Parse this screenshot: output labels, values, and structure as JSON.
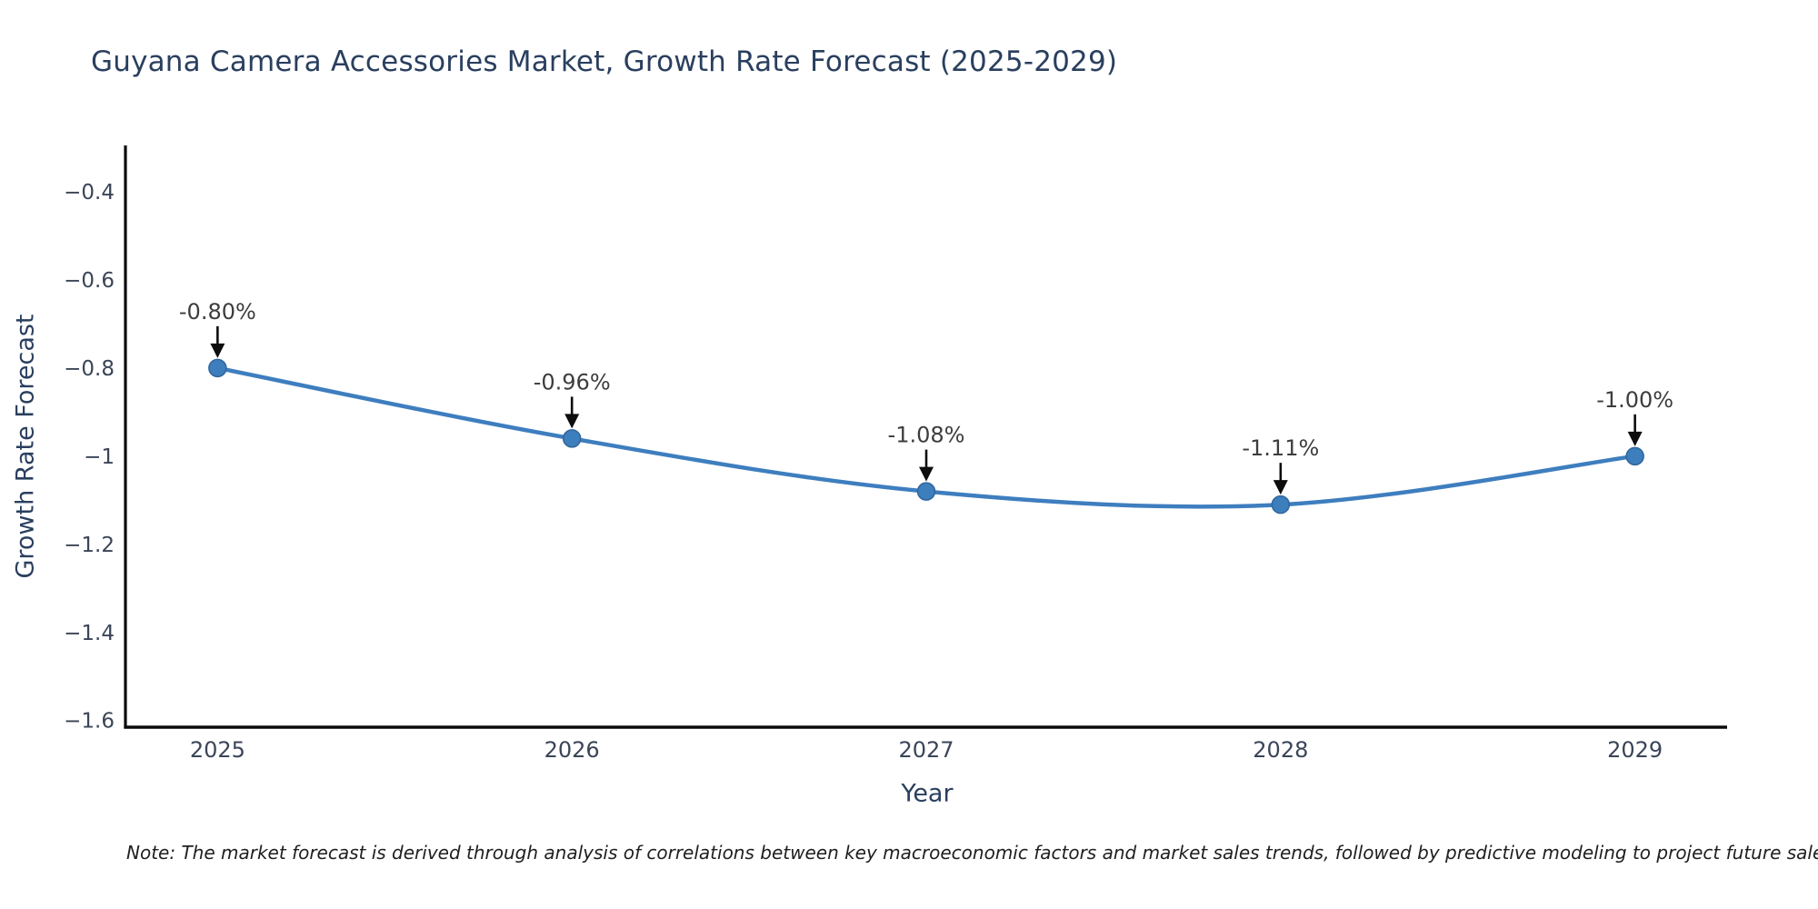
{
  "title": "Guyana Camera Accessories Market, Growth Rate Forecast (2025-2029)",
  "note": "Note: The market forecast is derived through analysis of correlations between key macroeconomic factors and market sales trends, followed by predictive modeling to project future sales.",
  "colors": {
    "background": "#ffffff",
    "line": "#3e7ebf",
    "marker_fill": "#3d7ebd",
    "marker_edge": "#31659c",
    "axis_line": "#0a0a0a",
    "title_text": "#2a3f5f",
    "tick_text": "#3b4558",
    "annotation_text": "#3d3d3d",
    "arrow": "#0d0d0d"
  },
  "chart_data": {
    "type": "line",
    "title": "Guyana Camera Accessories Market, Growth Rate Forecast (2025-2029)",
    "xlabel": "Year",
    "ylabel": "Growth Rate Forecast",
    "x": [
      2025,
      2026,
      2027,
      2028,
      2029
    ],
    "y": [
      -0.8,
      -0.96,
      -1.08,
      -1.11,
      -1.0
    ],
    "point_labels": [
      "-0.80%",
      "-0.96%",
      "-1.08%",
      "-1.11%",
      "-1.00%"
    ],
    "x_tick_labels": [
      "2025",
      "2026",
      "2027",
      "2028",
      "2029"
    ],
    "y_ticks": [
      -0.4,
      -0.6,
      -0.8,
      -1,
      -1.2,
      -1.4,
      -1.6
    ],
    "y_tick_labels": [
      "−0.4",
      "−0.6",
      "−0.8",
      "−1",
      "−1.2",
      "−1.4",
      "−1.6"
    ],
    "xlim": [
      2024.74,
      2029.26
    ],
    "ylim": [
      -1.615,
      -0.295
    ],
    "line_shape": "spline",
    "grid": false,
    "legend": "none",
    "annotation_style": "value label with black down-arrow pointing at each marker"
  }
}
